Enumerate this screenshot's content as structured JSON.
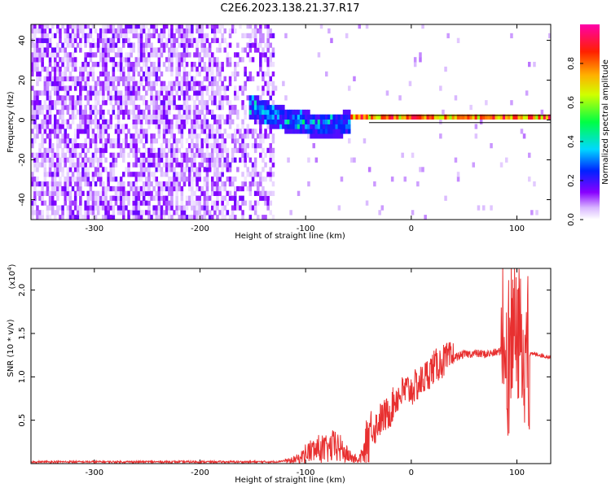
{
  "title": "C2E6.2023.138.21.37.R17",
  "chart_data": [
    {
      "type": "heatmap",
      "xlabel": "Height of straight line (km)",
      "ylabel": "Frequency (Hz)",
      "xlim": [
        -360,
        132
      ],
      "ylim": [
        -50,
        48
      ],
      "xticks": [
        -300,
        -200,
        -100,
        0,
        100
      ],
      "yticks": [
        -40,
        -20,
        0,
        20,
        40
      ],
      "colorbar": {
        "label": "Normalized spectral amplitude",
        "range": [
          0,
          1
        ],
        "ticks": [
          "0.0",
          "0.2",
          "0.4",
          "0.6",
          "0.8"
        ]
      },
      "features": [
        {
          "x_range": [
            -360,
            -130
          ],
          "freq_range": [
            -50,
            48
          ],
          "amplitude": "low (0.05-0.2), broadband noise"
        },
        {
          "x_range": [
            -155,
            -60
          ],
          "freq_center_start": 6,
          "freq_center_end": -3,
          "half_width": 6,
          "amplitude": "0.2-0.5"
        },
        {
          "x_range": [
            -60,
            132
          ],
          "freq_center": 0,
          "half_width": 1.5,
          "amplitude": "0.6-1.0"
        }
      ]
    },
    {
      "type": "line",
      "xlabel": "Height of straight line (km)",
      "ylabel": "SNR (10 * v/v)",
      "scale_note": "(x10",
      "scale_exp": "4",
      "xlim": [
        -360,
        132
      ],
      "ylim": [
        0,
        2.25
      ],
      "xticks": [
        -300,
        -200,
        -100,
        0,
        100
      ],
      "yticks": [
        0.5,
        1.0,
        1.5,
        2.0
      ],
      "ytick_labels": [
        "0.5",
        "1.0",
        "1.5",
        "2.0"
      ],
      "series": [
        {
          "color": "#e83030",
          "x": [
            -360,
            -300,
            -200,
            -130,
            -115,
            -105,
            -100,
            -95,
            -90,
            -85,
            -80,
            -75,
            -70,
            -65,
            -60,
            -55,
            -50,
            -45,
            -42,
            -38,
            -35,
            -30,
            -25,
            -20,
            -15,
            -10,
            -5,
            0,
            10,
            20,
            30,
            40,
            50,
            60,
            70,
            80,
            85,
            88,
            90,
            93,
            95,
            98,
            100,
            103,
            105,
            108,
            110,
            115,
            120,
            125,
            132
          ],
          "y": [
            0.02,
            0.02,
            0.02,
            0.02,
            0.04,
            0.08,
            0.15,
            0.18,
            0.2,
            0.22,
            0.2,
            0.24,
            0.25,
            0.18,
            0.12,
            0.08,
            0.05,
            0.15,
            0.35,
            0.45,
            0.4,
            0.5,
            0.55,
            0.6,
            0.75,
            0.8,
            0.85,
            0.85,
            0.95,
            1.1,
            1.18,
            1.22,
            1.26,
            1.27,
            1.26,
            1.28,
            1.3,
            1.45,
            1.25,
            1.6,
            1.35,
            1.5,
            1.25,
            1.55,
            1.2,
            1.3,
            1.26,
            1.26,
            1.26,
            1.24,
            1.23
          ]
        }
      ]
    }
  ]
}
